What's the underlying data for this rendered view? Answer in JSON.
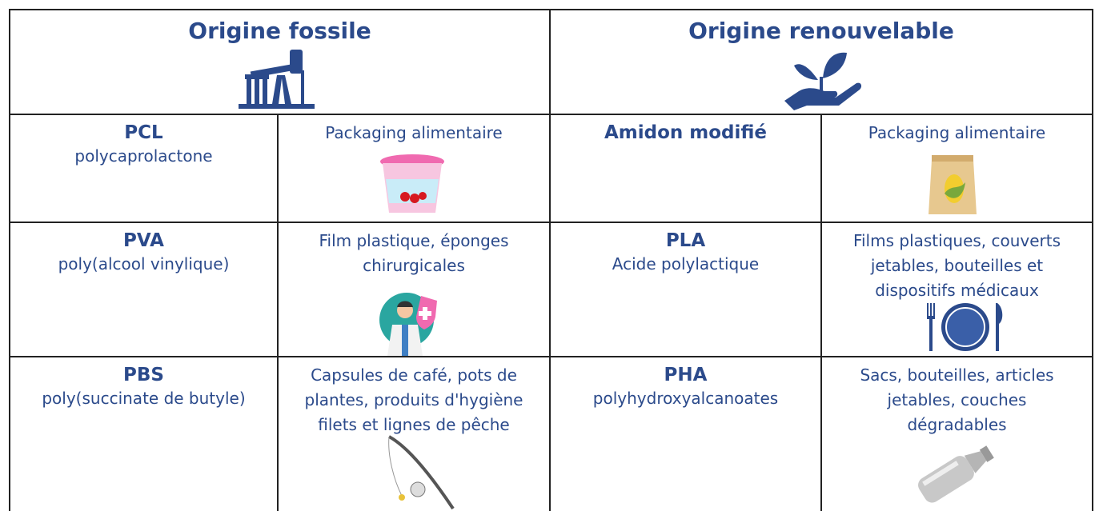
{
  "header": {
    "columns": [
      {
        "title": "Origine fossile"
      },
      {
        "title": "Origine renouvelable"
      }
    ]
  },
  "rows": [
    [
      {
        "name": "PCL",
        "full_name": "polycaprolactone"
      },
      {
        "use_lines": [
          "Packaging alimentaire"
        ]
      },
      {
        "name": "Amidon modifié"
      },
      {
        "use_lines": [
          "Packaging alimentaire"
        ]
      }
    ],
    [
      {
        "name": "PVA",
        "full_name": "poly(alcool vinylique)"
      },
      {
        "use_lines": [
          "Film plastique, éponges",
          "chirurgicales"
        ]
      },
      {
        "name": "PLA",
        "full_name": "Acide polylactique"
      },
      {
        "use_lines": [
          "Films plastiques, couverts",
          "jetables, bouteilles et",
          "dispositifs médicaux"
        ]
      }
    ],
    [
      {
        "name": "PBS",
        "full_name": "poly(succinate de butyle)"
      },
      {
        "use_lines": [
          "Capsules de café, pots de",
          "plantes, produits d'hygiène",
          "filets et lignes de pêche"
        ]
      },
      {
        "name": "PHA",
        "full_name": "polyhydroxyalcanoates"
      },
      {
        "use_lines": [
          "Sacs, bouteilles, articles",
          "jetables, couches",
          "dégradables"
        ]
      }
    ]
  ]
}
